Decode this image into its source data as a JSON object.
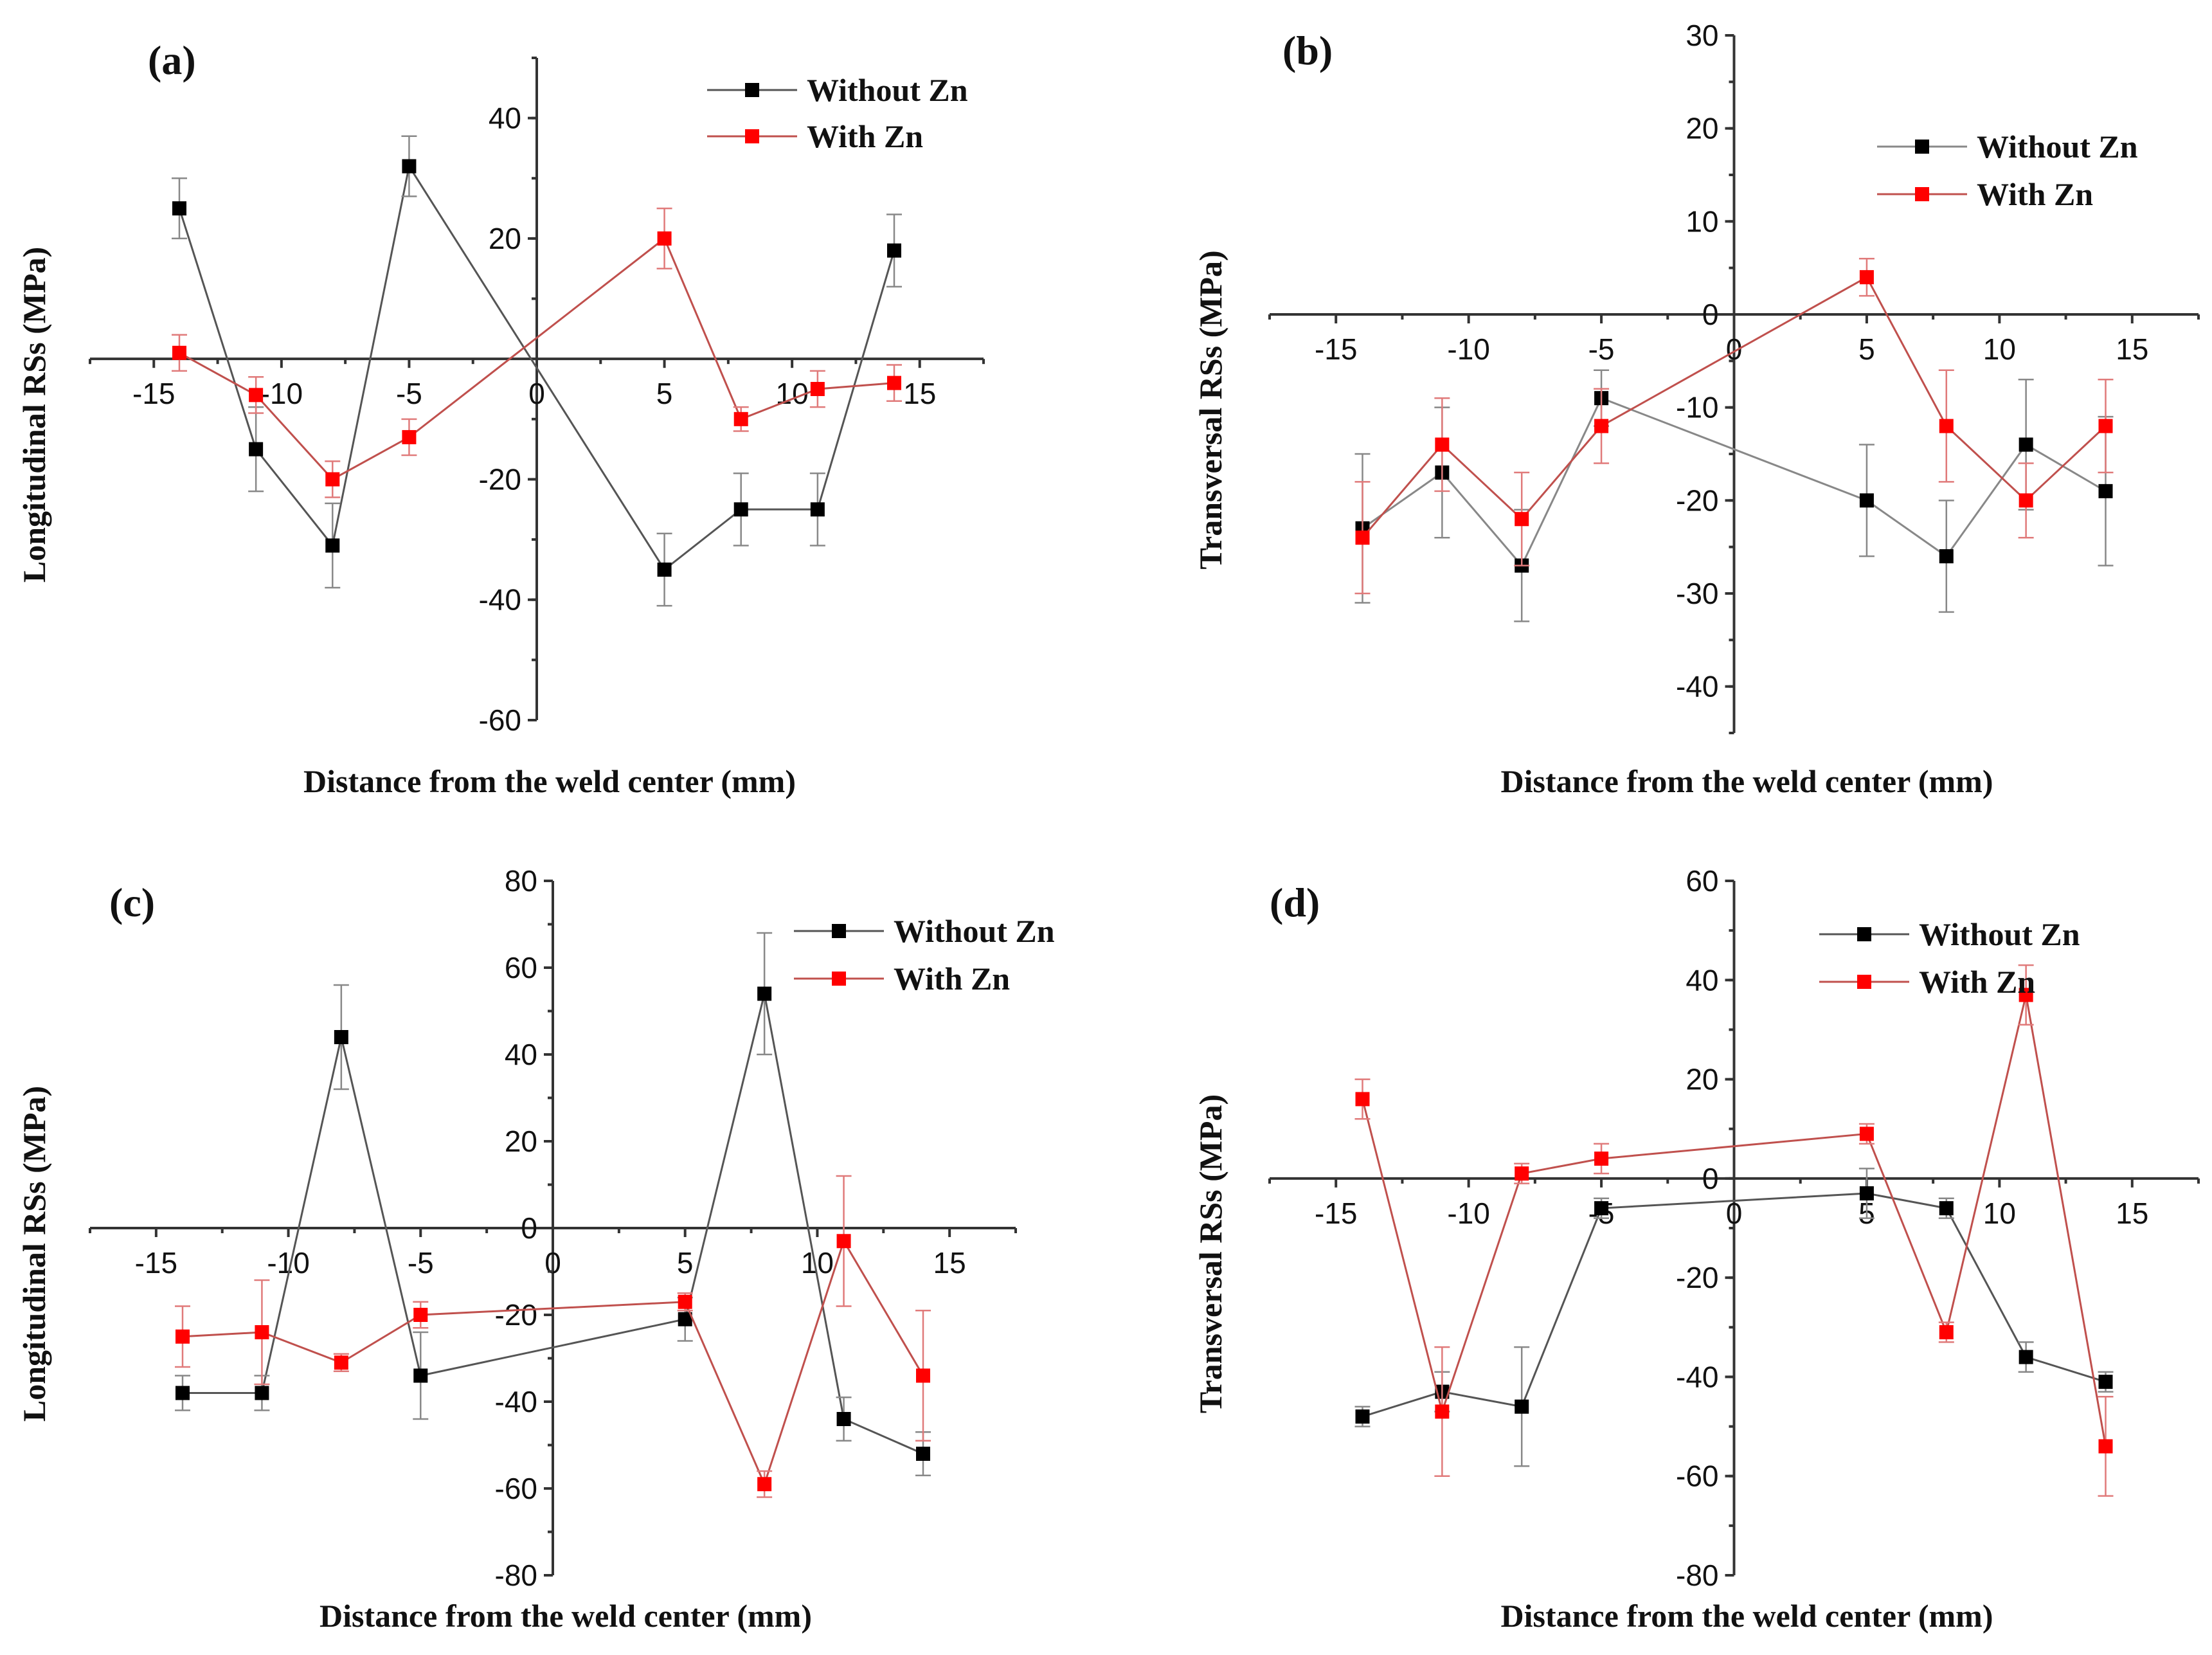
{
  "figure": {
    "background": "#ffffff"
  },
  "chart_data": [
    {
      "id": "a",
      "type": "line",
      "panel_label": "(a)",
      "xlabel": "Distance from the weld center (mm)",
      "ylabel": "Longitudinal RSs (MPa)",
      "xlim": [
        -17.5,
        17.5
      ],
      "ylim": [
        -60,
        50
      ],
      "xticks": [
        -15,
        -10,
        -5,
        0,
        5,
        10,
        15
      ],
      "yticks": [
        -60,
        -40,
        -20,
        20,
        40
      ],
      "legend": "top-right",
      "series": [
        {
          "name": "Without Zn",
          "line_color": "#555555",
          "marker_color": "#000000",
          "x": [
            -14,
            -11,
            -8,
            -5,
            5,
            8,
            11,
            14
          ],
          "y": [
            25,
            -15,
            -31,
            32,
            -35,
            -25,
            -25,
            18
          ],
          "err": [
            5,
            7,
            7,
            5,
            6,
            6,
            6,
            6
          ]
        },
        {
          "name": "With Zn",
          "line_color": "#c0504d",
          "marker_color": "#ff0000",
          "x": [
            -14,
            -11,
            -8,
            -5,
            5,
            8,
            11,
            14
          ],
          "y": [
            1,
            -6,
            -20,
            -13,
            20,
            -10,
            -5,
            -4
          ],
          "err": [
            3,
            3,
            3,
            3,
            5,
            2,
            3,
            3
          ]
        }
      ]
    },
    {
      "id": "b",
      "type": "line",
      "panel_label": "(b)",
      "xlabel": "Distance from the weld center (mm)",
      "ylabel": "Transversal RSs (MPa)",
      "xlim": [
        -17.5,
        17.5
      ],
      "ylim": [
        -45,
        30
      ],
      "xticks": [
        -15,
        -10,
        -5,
        0,
        5,
        10,
        15
      ],
      "yticks": [
        -40,
        -30,
        -20,
        -10,
        0,
        10,
        20,
        30
      ],
      "legend": "top-right",
      "series": [
        {
          "name": "Without Zn",
          "line_color": "#888888",
          "marker_color": "#000000",
          "x": [
            -14,
            -11,
            -8,
            -5,
            5,
            8,
            11,
            14
          ],
          "y": [
            -23,
            -17,
            -27,
            -9,
            -20,
            -26,
            -14,
            -19
          ],
          "err": [
            8,
            7,
            6,
            3,
            6,
            6,
            7,
            8
          ]
        },
        {
          "name": "With Zn",
          "line_color": "#c0504d",
          "marker_color": "#ff0000",
          "x": [
            -14,
            -11,
            -8,
            -5,
            5,
            8,
            11,
            14
          ],
          "y": [
            -24,
            -14,
            -22,
            -12,
            4,
            -12,
            -20,
            -12
          ],
          "err": [
            6,
            5,
            5,
            4,
            2,
            6,
            4,
            5
          ]
        }
      ]
    },
    {
      "id": "c",
      "type": "line",
      "panel_label": "(c)",
      "xlabel": "Distance from the weld center (mm)",
      "ylabel": "Longitudinal RSs (MPa)",
      "xlim": [
        -17.5,
        17.5
      ],
      "ylim": [
        -80,
        80
      ],
      "xticks": [
        -15,
        -10,
        -5,
        0,
        5,
        10,
        15
      ],
      "yticks": [
        -80,
        -60,
        -40,
        -20,
        0,
        20,
        40,
        60,
        80
      ],
      "legend": "top-right",
      "series": [
        {
          "name": "Without Zn",
          "line_color": "#555555",
          "marker_color": "#000000",
          "x": [
            -14,
            -11,
            -8,
            -5,
            5,
            8,
            11,
            14
          ],
          "y": [
            -38,
            -38,
            44,
            -34,
            -21,
            54,
            -44,
            -52
          ],
          "err": [
            4,
            4,
            12,
            10,
            5,
            14,
            5,
            5
          ]
        },
        {
          "name": "With Zn",
          "line_color": "#c0504d",
          "marker_color": "#ff0000",
          "x": [
            -14,
            -11,
            -8,
            -5,
            5,
            8,
            11,
            14
          ],
          "y": [
            -25,
            -24,
            -31,
            -20,
            -17,
            -59,
            -3,
            -34
          ],
          "err": [
            7,
            12,
            2,
            3,
            2,
            3,
            15,
            15
          ]
        }
      ]
    },
    {
      "id": "d",
      "type": "line",
      "panel_label": "(d)",
      "xlabel": "Distance from the weld center (mm)",
      "ylabel": "Transversal RSs (MPa)",
      "xlim": [
        -17.5,
        17.5
      ],
      "ylim": [
        -80,
        60
      ],
      "xticks": [
        -15,
        -10,
        -5,
        0,
        5,
        10,
        15
      ],
      "yticks": [
        -80,
        -60,
        -40,
        -20,
        0,
        20,
        40,
        60
      ],
      "legend": "top-right",
      "series": [
        {
          "name": "Without Zn",
          "line_color": "#555555",
          "marker_color": "#000000",
          "x": [
            -14,
            -11,
            -8,
            -5,
            5,
            8,
            11,
            14
          ],
          "y": [
            -48,
            -43,
            -46,
            -6,
            -3,
            -6,
            -36,
            -41
          ],
          "err": [
            2,
            4,
            12,
            2,
            5,
            2,
            3,
            2
          ]
        },
        {
          "name": "With Zn",
          "line_color": "#c0504d",
          "marker_color": "#ff0000",
          "x": [
            -14,
            -11,
            -8,
            -5,
            5,
            8,
            11,
            14
          ],
          "y": [
            16,
            -47,
            1,
            4,
            9,
            -31,
            37,
            -54
          ],
          "err": [
            4,
            13,
            2,
            3,
            2,
            2,
            6,
            10
          ]
        }
      ]
    }
  ]
}
